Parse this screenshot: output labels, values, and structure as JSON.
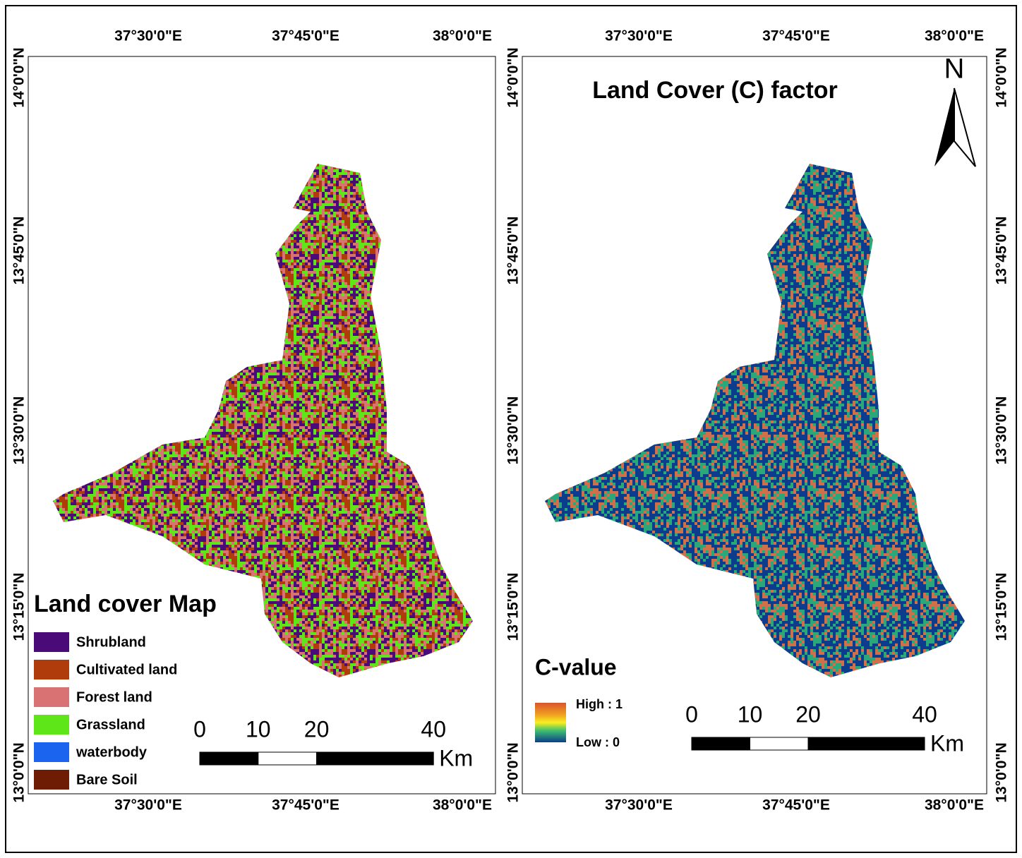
{
  "maps": [
    {
      "title": "Land cover Map",
      "lon_labels": [
        "37°30'0\"E",
        "37°45'0\"E",
        "38°0'0\"E"
      ],
      "lat_labels": [
        "14°0'0\"N",
        "13°45'0\"N",
        "13°30'0\"N",
        "13°15'0\"N",
        "13°0'0\"N"
      ],
      "legend": [
        {
          "label": "Shrubland",
          "color": "#4a0a78"
        },
        {
          "label": "Cultivated land",
          "color": "#b03c0c"
        },
        {
          "label": "Forest land",
          "color": "#d97373"
        },
        {
          "label": "Grassland",
          "color": "#5fe619"
        },
        {
          "label": "waterbody",
          "color": "#1a64f0"
        },
        {
          "label": "Bare Soil",
          "color": "#6e1c04"
        }
      ],
      "scale_bar": {
        "ticks": [
          0,
          10,
          20,
          40
        ],
        "unit": "Km"
      }
    },
    {
      "title": "Land Cover (C) factor",
      "lon_labels": [
        "37°30'0\"E",
        "37°45'0\"E",
        "38°0'0\"E"
      ],
      "lat_labels": [
        "14°0'0\"N",
        "13°45'0\"N",
        "13°30'0\"N",
        "13°15'0\"N",
        "13°0'0\"N"
      ],
      "legend_title": "C-value",
      "legend": {
        "high": "High : 1",
        "low": "Low : 0"
      },
      "north": "N",
      "scale_bar": {
        "ticks": [
          0,
          10,
          20,
          40
        ],
        "unit": "Km"
      }
    }
  ]
}
